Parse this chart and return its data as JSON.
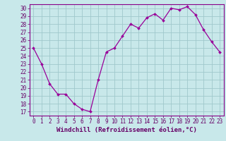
{
  "x": [
    0,
    1,
    2,
    3,
    4,
    5,
    6,
    7,
    8,
    9,
    10,
    11,
    12,
    13,
    14,
    15,
    16,
    17,
    18,
    19,
    20,
    21,
    22,
    23
  ],
  "y": [
    25,
    23,
    20.5,
    19.2,
    19.2,
    18,
    17.3,
    17,
    21,
    24.5,
    25,
    26.5,
    28,
    27.5,
    28.8,
    29.3,
    28.5,
    30,
    29.8,
    30.2,
    29.2,
    27.3,
    25.8,
    24.5
  ],
  "line_color": "#990099",
  "marker_color": "#990099",
  "bg_color": "#c8e8ea",
  "grid_color": "#a0c8cc",
  "xlabel": "Windchill (Refroidissement éolien,°C)",
  "ylim_min": 16.5,
  "ylim_max": 30.5,
  "yticks": [
    17,
    18,
    19,
    20,
    21,
    22,
    23,
    24,
    25,
    26,
    27,
    28,
    29,
    30
  ],
  "xticks": [
    0,
    1,
    2,
    3,
    4,
    5,
    6,
    7,
    8,
    9,
    10,
    11,
    12,
    13,
    14,
    15,
    16,
    17,
    18,
    19,
    20,
    21,
    22,
    23
  ],
  "xlim_min": -0.5,
  "xlim_max": 23.5,
  "tick_fontsize": 5.5,
  "xlabel_fontsize": 6.5,
  "spine_color": "#880088"
}
